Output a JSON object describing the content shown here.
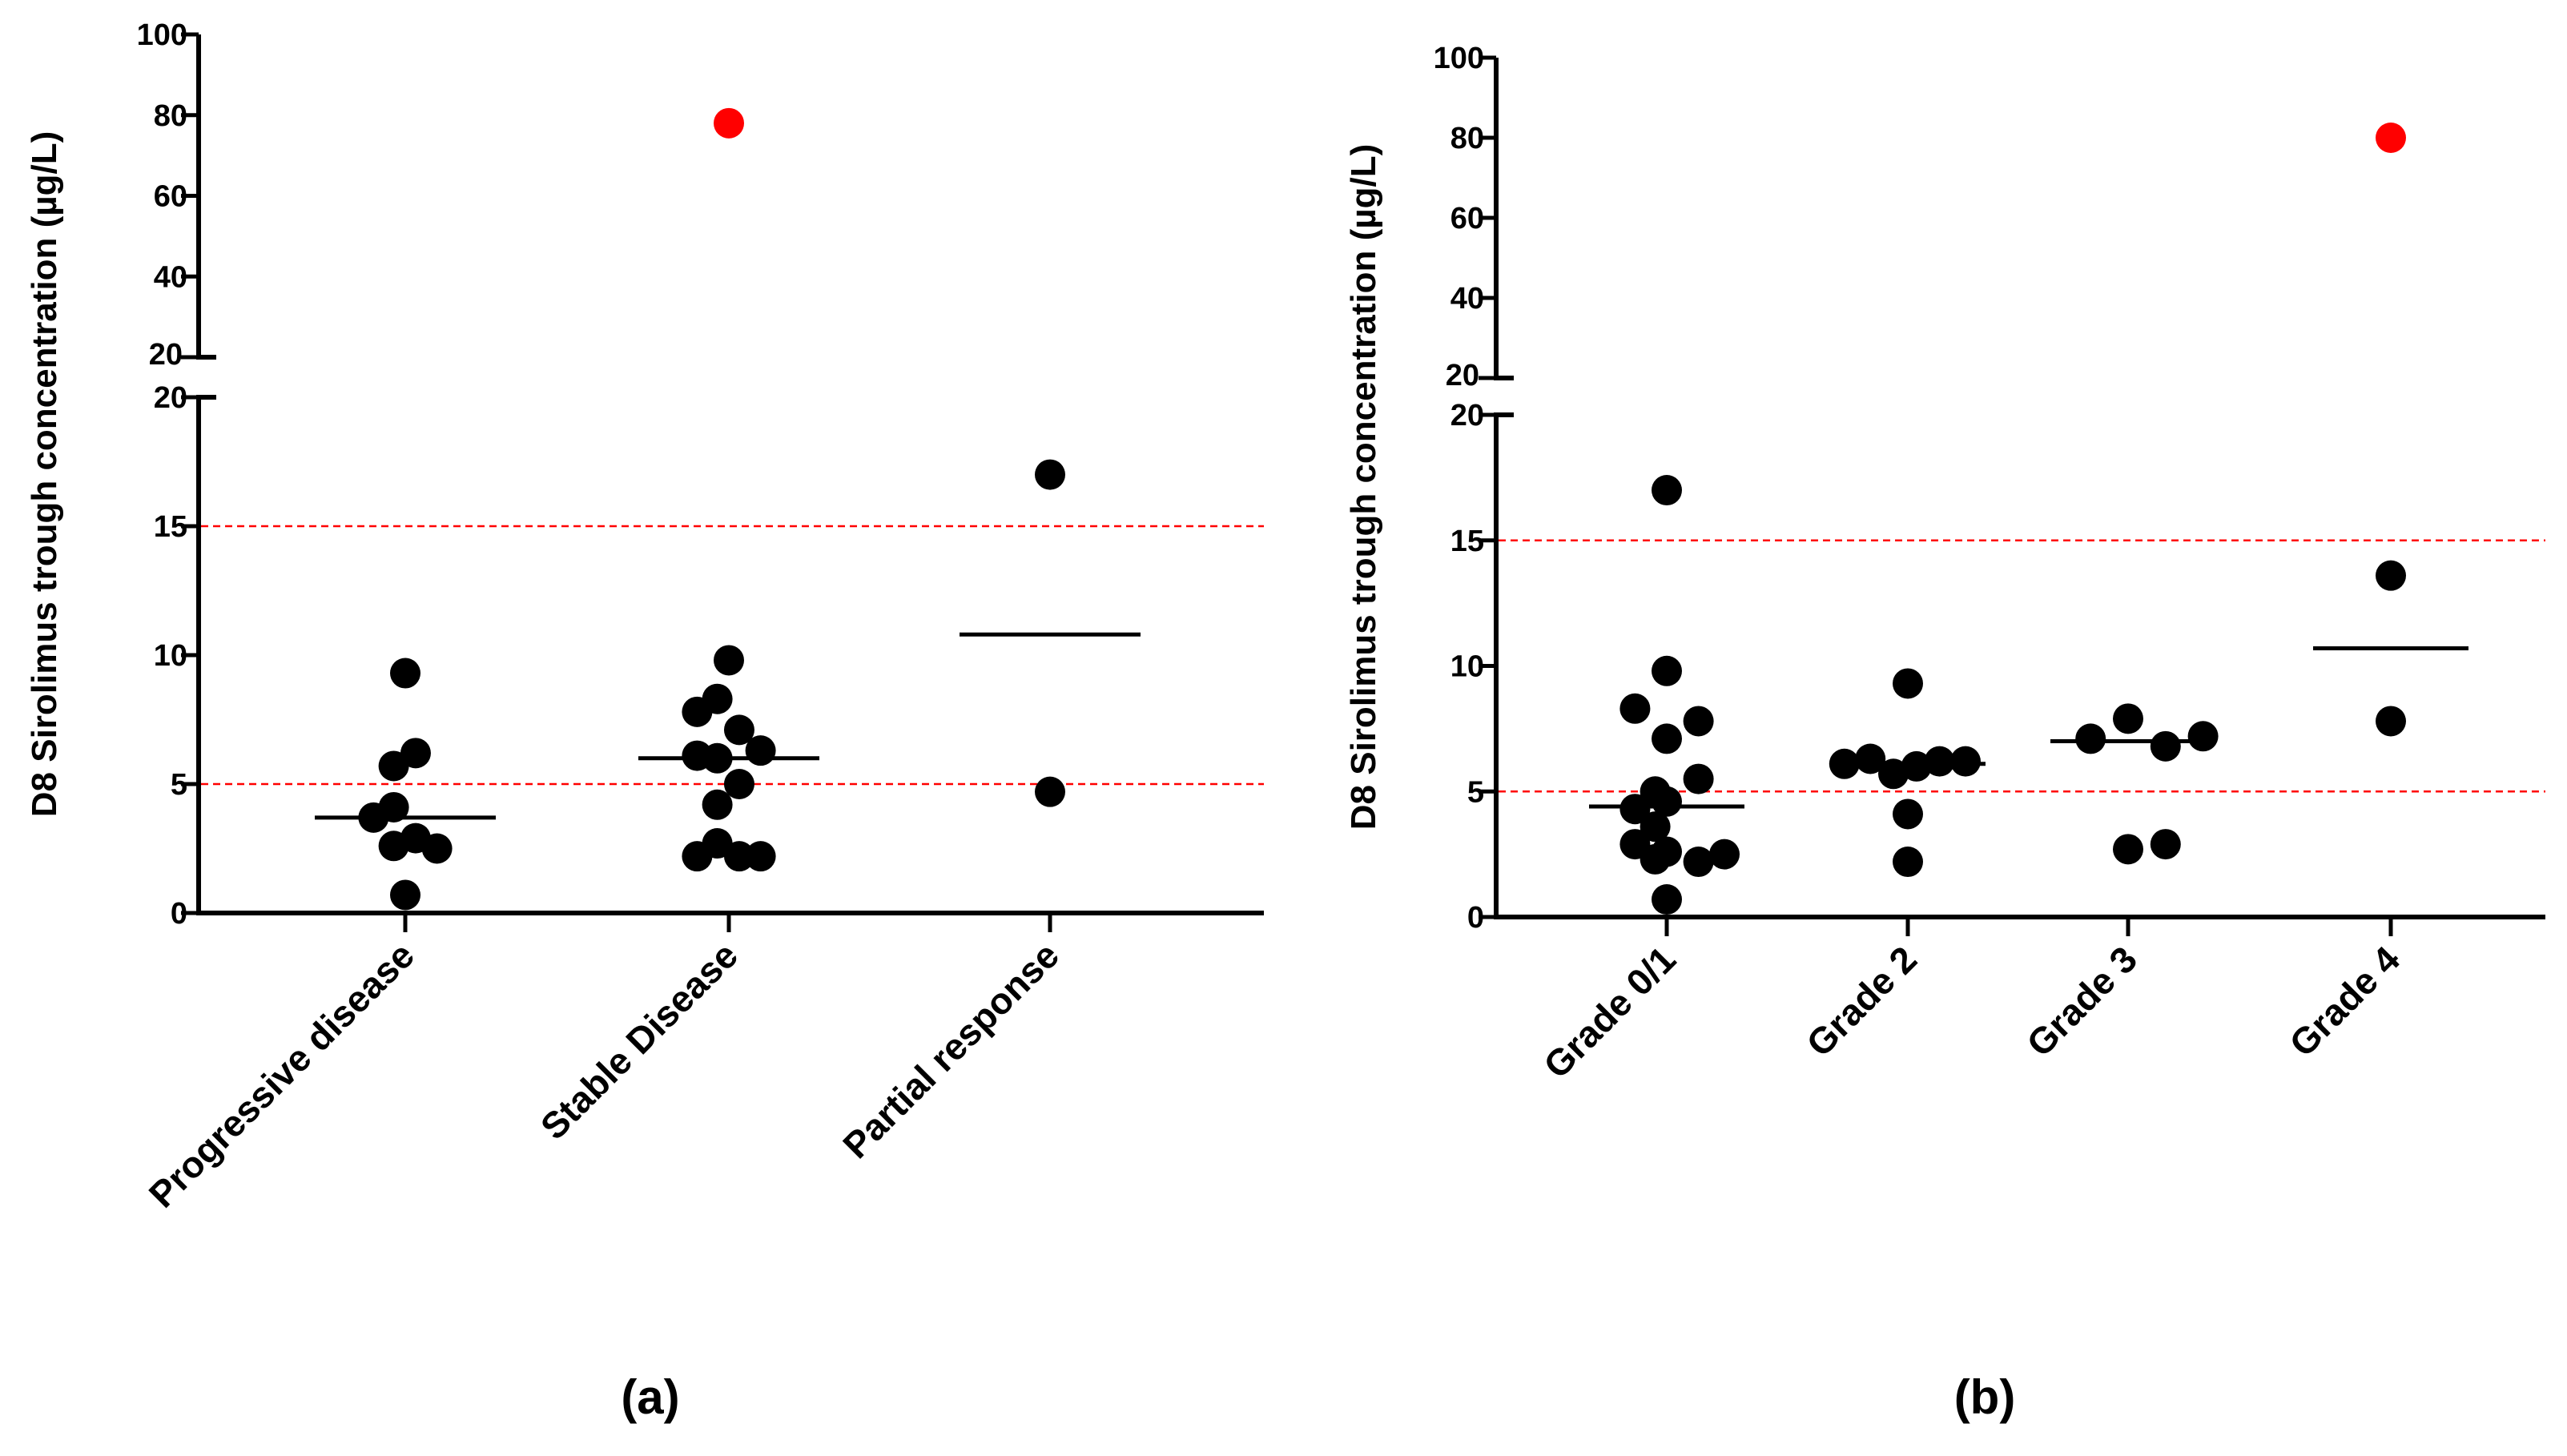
{
  "colors": {
    "axis": "#000000",
    "point": "#000000",
    "outlier": "#ff0000",
    "reference_line": "#ff0000",
    "median_line": "#000000"
  },
  "chart_data": [
    {
      "id": "a",
      "type": "scatter",
      "subtype": "column scatter with median lines, broken y-axis",
      "panel_label": "(a)",
      "title": "",
      "xlabel": "",
      "ylabel": "D8 Sirolimus trough concentration (µg/L)",
      "categories": [
        "Progressive disease",
        "Stable Disease",
        "Partial response"
      ],
      "y_lower": {
        "range": [
          0,
          20
        ],
        "ticks": [
          0,
          5,
          10,
          15,
          20
        ]
      },
      "y_upper": {
        "range": [
          20,
          100
        ],
        "ticks": [
          20,
          40,
          60,
          80,
          100
        ]
      },
      "reference_lines": [
        5,
        15
      ],
      "grid": false,
      "series": [
        {
          "name": "Progressive disease",
          "median": 3.7,
          "points": [
            {
              "dx": 0,
              "y": 9.3
            },
            {
              "dx": -0.2,
              "y": 5.7
            },
            {
              "dx": 0.18,
              "y": 6.2
            },
            {
              "dx": -0.55,
              "y": 3.7
            },
            {
              "dx": -0.2,
              "y": 4.1
            },
            {
              "dx": -0.2,
              "y": 2.6
            },
            {
              "dx": 0.18,
              "y": 2.9
            },
            {
              "dx": 0.55,
              "y": 2.5
            },
            {
              "dx": 0,
              "y": 0.7
            }
          ]
        },
        {
          "name": "Stable Disease",
          "median": 6.0,
          "outliers": [
            {
              "dx": 0,
              "y": 78
            }
          ],
          "points": [
            {
              "dx": 0,
              "y": 9.8
            },
            {
              "dx": -0.55,
              "y": 7.8
            },
            {
              "dx": -0.2,
              "y": 8.3
            },
            {
              "dx": 0.18,
              "y": 7.1
            },
            {
              "dx": -0.55,
              "y": 6.1
            },
            {
              "dx": -0.2,
              "y": 6.0
            },
            {
              "dx": 0.55,
              "y": 6.3
            },
            {
              "dx": -0.2,
              "y": 4.2
            },
            {
              "dx": 0.18,
              "y": 5.0
            },
            {
              "dx": -0.55,
              "y": 2.2
            },
            {
              "dx": -0.2,
              "y": 2.7
            },
            {
              "dx": 0.18,
              "y": 2.2
            },
            {
              "dx": 0.55,
              "y": 2.2
            }
          ]
        },
        {
          "name": "Partial response",
          "median": 10.8,
          "points": [
            {
              "dx": 0,
              "y": 17.0
            },
            {
              "dx": 0,
              "y": 4.7
            }
          ]
        }
      ]
    },
    {
      "id": "b",
      "type": "scatter",
      "subtype": "column scatter with median lines, broken y-axis",
      "panel_label": "(b)",
      "title": "",
      "xlabel": "",
      "ylabel": "D8 Sirolimus trough concentration (µg/L)",
      "categories": [
        "Grade 0/1",
        "Grade 2",
        "Grade 3",
        "Grade 4"
      ],
      "y_lower": {
        "range": [
          0,
          20
        ],
        "ticks": [
          0,
          5,
          10,
          15,
          20
        ]
      },
      "y_upper": {
        "range": [
          20,
          100
        ],
        "ticks": [
          20,
          40,
          60,
          80,
          100
        ]
      },
      "reference_lines": [
        5,
        15
      ],
      "grid": false,
      "series": [
        {
          "name": "Grade 0/1",
          "median": 4.4,
          "points": [
            {
              "dx": 0,
              "y": 17.0
            },
            {
              "dx": 0,
              "y": 9.8
            },
            {
              "dx": -0.55,
              "y": 8.3
            },
            {
              "dx": 0,
              "y": 7.1
            },
            {
              "dx": 0.55,
              "y": 7.8
            },
            {
              "dx": 0.55,
              "y": 5.5
            },
            {
              "dx": -0.55,
              "y": 4.3
            },
            {
              "dx": -0.2,
              "y": 5.0
            },
            {
              "dx": 0,
              "y": 4.6
            },
            {
              "dx": -0.2,
              "y": 3.6
            },
            {
              "dx": -0.55,
              "y": 2.9
            },
            {
              "dx": -0.2,
              "y": 2.3
            },
            {
              "dx": 0,
              "y": 2.6
            },
            {
              "dx": 0.55,
              "y": 2.2
            },
            {
              "dx": 1.0,
              "y": 2.5
            },
            {
              "dx": 0,
              "y": 0.7
            }
          ]
        },
        {
          "name": "Grade 2",
          "median": 6.1,
          "points": [
            {
              "dx": 0,
              "y": 9.3
            },
            {
              "dx": -1.1,
              "y": 6.1
            },
            {
              "dx": -0.65,
              "y": 6.3
            },
            {
              "dx": -0.25,
              "y": 5.7
            },
            {
              "dx": 0.15,
              "y": 6.0
            },
            {
              "dx": 0.55,
              "y": 6.2
            },
            {
              "dx": 1.0,
              "y": 6.2
            },
            {
              "dx": 0,
              "y": 4.1
            },
            {
              "dx": 0,
              "y": 2.2
            }
          ]
        },
        {
          "name": "Grade 3",
          "median": 7.0,
          "points": [
            {
              "dx": -0.65,
              "y": 7.1
            },
            {
              "dx": 0,
              "y": 7.9
            },
            {
              "dx": 0.65,
              "y": 6.8
            },
            {
              "dx": 1.3,
              "y": 7.2
            },
            {
              "dx": 0,
              "y": 2.7
            },
            {
              "dx": 0.65,
              "y": 2.9
            }
          ]
        },
        {
          "name": "Grade 4",
          "median": 10.7,
          "outliers": [
            {
              "dx": 0,
              "y": 80
            }
          ],
          "points": [
            {
              "dx": 0,
              "y": 13.6
            },
            {
              "dx": 0,
              "y": 7.8
            }
          ]
        }
      ]
    }
  ]
}
